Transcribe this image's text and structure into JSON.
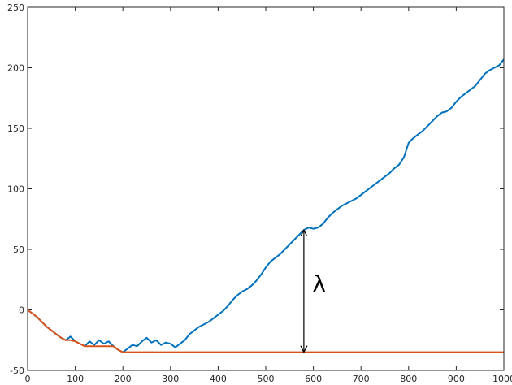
{
  "chart_data": {
    "type": "line",
    "title": "",
    "xlabel": "",
    "ylabel": "",
    "xlim": [
      0,
      1000
    ],
    "ylim": [
      -50,
      250
    ],
    "xticks": [
      0,
      100,
      200,
      300,
      400,
      500,
      600,
      700,
      800,
      900,
      1000
    ],
    "yticks": [
      -50,
      0,
      50,
      100,
      150,
      200,
      250
    ],
    "grid": false,
    "legend": "none",
    "series": [
      {
        "color": "#0072BD",
        "x": [
          0,
          10,
          20,
          30,
          40,
          50,
          60,
          70,
          80,
          90,
          100,
          110,
          120,
          130,
          140,
          150,
          160,
          170,
          180,
          190,
          200,
          210,
          220,
          230,
          240,
          250,
          260,
          270,
          280,
          290,
          300,
          310,
          320,
          330,
          340,
          350,
          360,
          370,
          380,
          390,
          400,
          410,
          420,
          430,
          440,
          450,
          460,
          470,
          480,
          490,
          500,
          510,
          520,
          530,
          540,
          550,
          560,
          570,
          580,
          590,
          600,
          610,
          620,
          630,
          640,
          650,
          660,
          670,
          680,
          690,
          700,
          710,
          720,
          730,
          740,
          750,
          760,
          770,
          780,
          790,
          800,
          810,
          820,
          830,
          840,
          850,
          860,
          870,
          880,
          890,
          900,
          910,
          920,
          930,
          940,
          950,
          960,
          970,
          980,
          990,
          1000
        ],
        "y": [
          0,
          -3,
          -6,
          -10,
          -14,
          -17,
          -20,
          -23,
          -25,
          -22,
          -26,
          -28,
          -30,
          -26,
          -29,
          -25,
          -28,
          -26,
          -30,
          -33,
          -35,
          -32,
          -29,
          -30,
          -26,
          -23,
          -27,
          -25,
          -29,
          -27,
          -28,
          -31,
          -28,
          -25,
          -20,
          -17,
          -14,
          -12,
          -10,
          -7,
          -4,
          -1,
          3,
          8,
          12,
          15,
          17,
          20,
          24,
          29,
          35,
          40,
          43,
          46,
          50,
          54,
          58,
          62,
          66,
          68,
          67,
          68,
          71,
          76,
          80,
          83,
          86,
          88,
          90,
          92,
          95,
          98,
          101,
          104,
          107,
          110,
          113,
          117,
          120,
          126,
          138,
          142,
          145,
          148,
          152,
          156,
          160,
          163,
          164,
          167,
          172,
          176,
          179,
          182,
          185,
          190,
          195,
          198,
          200,
          202,
          207
        ]
      },
      {
        "color": "#D95319",
        "x": [
          0,
          10,
          20,
          30,
          40,
          50,
          60,
          70,
          80,
          90,
          100,
          110,
          120,
          130,
          140,
          150,
          160,
          170,
          180,
          190,
          200,
          1000
        ],
        "y": [
          0,
          -3,
          -6,
          -10,
          -14,
          -17,
          -20,
          -23,
          -25,
          -25,
          -26,
          -28,
          -30,
          -30,
          -30,
          -30,
          -30,
          -30,
          -30,
          -33,
          -35,
          -35
        ]
      }
    ],
    "annotations": [
      {
        "type": "double-arrow",
        "x": 580,
        "y_from": -35,
        "y_to": 66
      },
      {
        "type": "text",
        "text": "λ",
        "x": 598,
        "y": 15
      }
    ]
  }
}
